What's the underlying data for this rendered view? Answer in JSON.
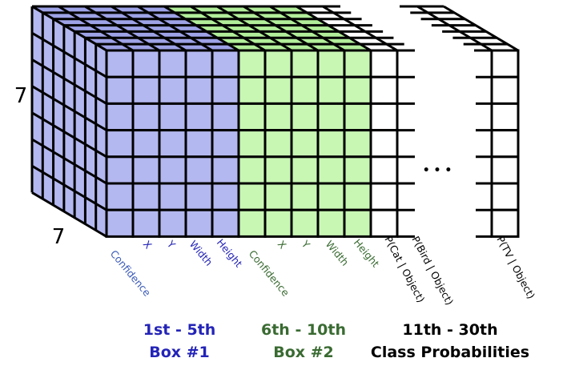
{
  "colors": {
    "box1": "#b4b8f0",
    "box1_dark": "#9ea2e6",
    "box2": "#c8f7b4",
    "box2_dark": "#b2ee9a",
    "class": "#ffffff",
    "grid": "#000000",
    "box1_text": "#2424b8",
    "box1_text_alt": "#3b5bb8",
    "box2_text": "#3a6b32",
    "class_text": "#000000"
  },
  "grid": {
    "rows_label": "7",
    "cols_label": "7"
  },
  "ellipsis": "• • •",
  "column_labels": {
    "box1": [
      "Confidence",
      "X",
      "Y",
      "Width",
      "Height"
    ],
    "box2": [
      "Confidence",
      "X",
      "Y",
      "Width",
      "Height"
    ],
    "class": [
      "P(Cat | Object)",
      "P(Bird | Object)",
      "P(TV | Object)"
    ]
  },
  "groups": {
    "box1": {
      "range": "1st - 5th",
      "name": "Box #1"
    },
    "box2": {
      "range": "6th - 10th",
      "name": "Box #2"
    },
    "class": {
      "range": "11th - 30th",
      "name": "Class Probabilities"
    }
  }
}
